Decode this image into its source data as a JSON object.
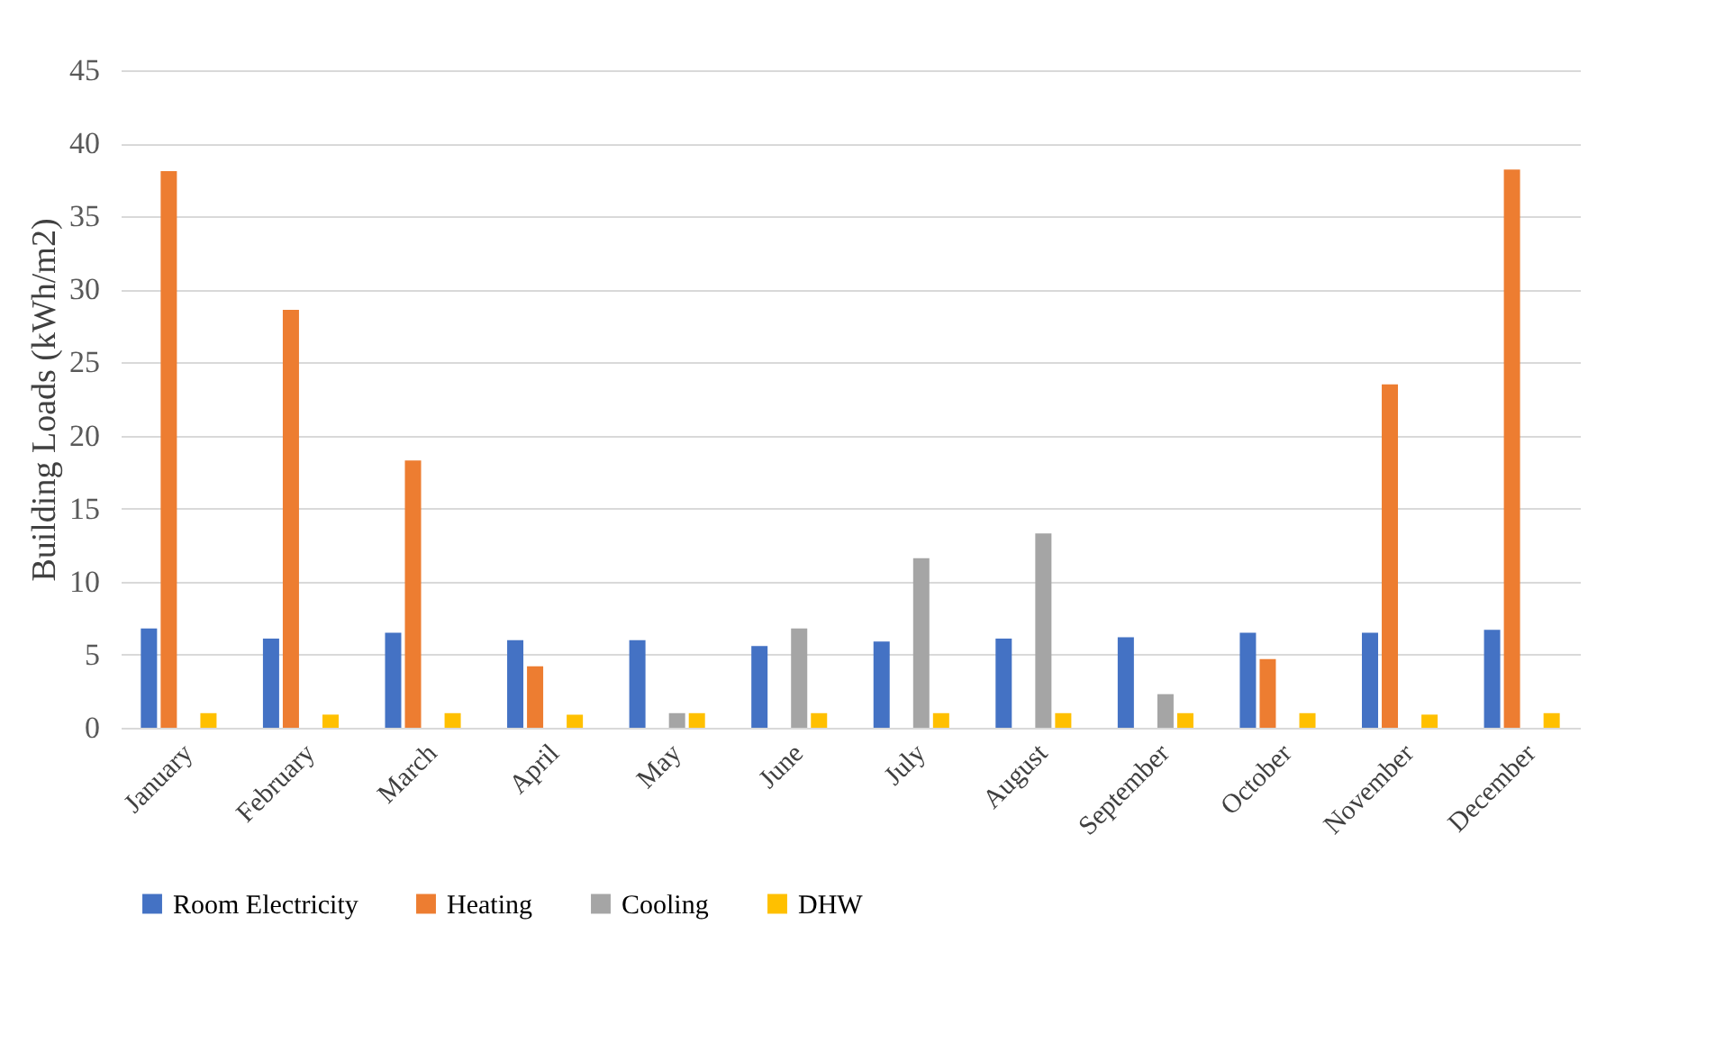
{
  "chart_data": {
    "type": "bar",
    "ylabel": "Building Loads (kWh/m2)",
    "categories": [
      "January",
      "February",
      "March",
      "April",
      "May",
      "June",
      "July",
      "August",
      "September",
      "October",
      "November",
      "December"
    ],
    "series": [
      {
        "name": "Room Electricity",
        "color": "#4472c4",
        "values": [
          6.8,
          6.1,
          6.5,
          6.0,
          6.0,
          5.6,
          5.9,
          6.1,
          6.2,
          6.5,
          6.5,
          6.7
        ]
      },
      {
        "name": "Heating",
        "color": "#ed7d31",
        "values": [
          38.1,
          28.6,
          18.3,
          4.2,
          0,
          0,
          0,
          0,
          0,
          4.7,
          23.5,
          38.2
        ]
      },
      {
        "name": "Cooling",
        "color": "#a5a5a5",
        "values": [
          0,
          0,
          0,
          0,
          1.0,
          6.8,
          11.6,
          13.3,
          2.3,
          null,
          0,
          0
        ]
      },
      {
        "name": "DHW",
        "color": "#ffc000",
        "values": [
          1.0,
          0.9,
          1.0,
          0.9,
          1.0,
          1.0,
          1.0,
          1.0,
          1.0,
          1.0,
          0.9,
          1.0
        ]
      }
    ],
    "ylim": [
      0,
      45
    ],
    "yticks": [
      0,
      5,
      10,
      15,
      20,
      25,
      30,
      35,
      40,
      45
    ],
    "grid": "y",
    "legend": "bottom"
  }
}
